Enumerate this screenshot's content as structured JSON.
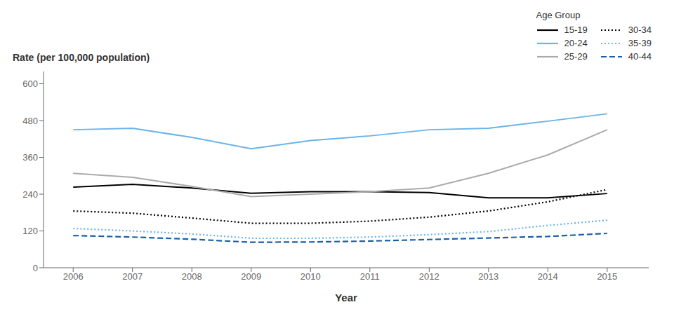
{
  "chart_data": {
    "type": "line",
    "x": [
      2006,
      2007,
      2008,
      2009,
      2010,
      2011,
      2012,
      2013,
      2014,
      2015
    ],
    "series": [
      {
        "name": "15-19",
        "color": "#000000",
        "line_style": "solid",
        "values": [
          263,
          272,
          260,
          243,
          248,
          248,
          245,
          228,
          228,
          242
        ]
      },
      {
        "name": "20-24",
        "color": "#6ab4e8",
        "line_style": "solid",
        "values": [
          450,
          455,
          425,
          388,
          415,
          430,
          450,
          455,
          478,
          502
        ]
      },
      {
        "name": "25-29",
        "color": "#aaaaaa",
        "line_style": "solid",
        "values": [
          308,
          295,
          265,
          232,
          240,
          248,
          260,
          308,
          368,
          450
        ]
      },
      {
        "name": "30-34",
        "color": "#000000",
        "line_style": "dotted",
        "values": [
          185,
          178,
          162,
          145,
          145,
          152,
          165,
          185,
          215,
          255
        ]
      },
      {
        "name": "35-39",
        "color": "#6ab4e8",
        "line_style": "dotted",
        "values": [
          128,
          120,
          110,
          96,
          96,
          100,
          108,
          118,
          138,
          155
        ]
      },
      {
        "name": "40-44",
        "color": "#1a5fa8",
        "line_style": "dashed",
        "values": [
          105,
          100,
          93,
          83,
          84,
          87,
          92,
          97,
          102,
          112
        ]
      }
    ],
    "xlim": [
      2005.5,
      2015.7
    ],
    "xticks": [
      2006,
      2007,
      2008,
      2009,
      2010,
      2011,
      2012,
      2013,
      2014,
      2015
    ],
    "ylim": [
      0,
      640
    ],
    "yticks": [
      0,
      120,
      240,
      360,
      480,
      600
    ],
    "xlabel": "Year",
    "ylabel": "Rate (per 100,000 population)",
    "legend_title": "Age Group",
    "legend": "upper right",
    "grid": false
  }
}
